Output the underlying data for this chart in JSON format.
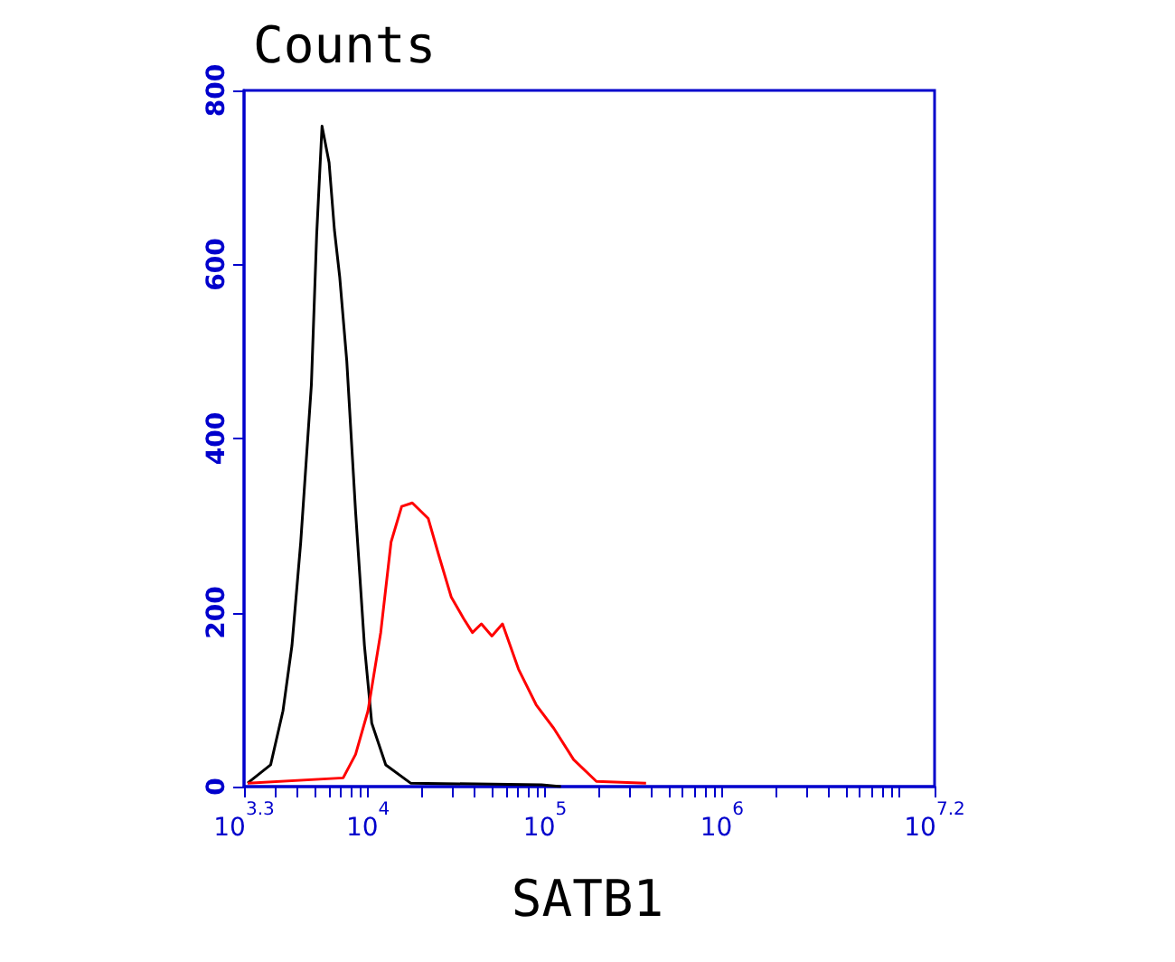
{
  "chart_data": {
    "type": "line",
    "ylabel": "Counts",
    "xlabel": "SATB1",
    "log": "x",
    "xlim": [
      1995,
      15850000
    ],
    "ylim": [
      0,
      800
    ],
    "yticks": [
      0,
      200,
      400,
      600,
      800
    ],
    "xticks": [
      {
        "value": 1995,
        "label": "10$^{3.3}$"
      },
      {
        "value": 3000,
        "label": null
      },
      {
        "value": 4000,
        "label": null
      },
      {
        "value": 5000,
        "label": null
      },
      {
        "value": 6000,
        "label": null
      },
      {
        "value": 7000,
        "label": null
      },
      {
        "value": 8000,
        "label": null
      },
      {
        "value": 9000,
        "label": null
      },
      {
        "value": 10000,
        "label": "10$^{4}$"
      },
      {
        "value": 20000,
        "label": null
      },
      {
        "value": 30000,
        "label": null
      },
      {
        "value": 40000,
        "label": null
      },
      {
        "value": 50000,
        "label": null
      },
      {
        "value": 60000,
        "label": null
      },
      {
        "value": 70000,
        "label": null
      },
      {
        "value": 80000,
        "label": null
      },
      {
        "value": 90000,
        "label": null
      },
      {
        "value": 100000,
        "label": "10$^{5}$"
      },
      {
        "value": 200000,
        "label": null
      },
      {
        "value": 300000,
        "label": null
      },
      {
        "value": 400000,
        "label": null
      },
      {
        "value": 500000,
        "label": null
      },
      {
        "value": 600000,
        "label": null
      },
      {
        "value": 700000,
        "label": null
      },
      {
        "value": 800000,
        "label": null
      },
      {
        "value": 900000,
        "label": null
      },
      {
        "value": 1000000,
        "label": "10$^{6}$"
      },
      {
        "value": 2000000,
        "label": null
      },
      {
        "value": 3000000,
        "label": null
      },
      {
        "value": 4000000,
        "label": null
      },
      {
        "value": 5000000,
        "label": null
      },
      {
        "value": 6000000,
        "label": null
      },
      {
        "value": 7000000,
        "label": null
      },
      {
        "value": 8000000,
        "label": null
      },
      {
        "value": 9000000,
        "label": null
      },
      {
        "value": 10000000,
        "label": null
      },
      {
        "value": 15850000,
        "label": "10$^{7.2}$"
      }
    ],
    "grid": false,
    "marker": "none",
    "line_style": "solid",
    "series": [
      {
        "color": "#000000",
        "x": [
          2090,
          2820,
          3310,
          3720,
          4170,
          4790,
          5130,
          5500,
          6030,
          6460,
          6920,
          7590,
          8510,
          9550,
          10500,
          12600,
          17400,
          95500,
          123000
        ],
        "values": [
          4,
          25,
          87,
          162,
          281,
          462,
          634,
          759,
          717,
          640,
          586,
          489,
          316,
          162,
          73,
          25,
          4,
          2,
          0
        ]
      },
      {
        "color": "#ff0000",
        "x": [
          2090,
          7240,
          8510,
          10000,
          11800,
          13500,
          15500,
          17800,
          21900,
          25100,
          29500,
          34700,
          38900,
          43700,
          50100,
          57500,
          70800,
          89100,
          112000,
          145000,
          195000,
          372000
        ],
        "values": [
          4,
          10,
          37,
          87,
          177,
          281,
          322,
          326,
          308,
          266,
          218,
          193,
          177,
          187,
          173,
          187,
          135,
          94,
          67,
          31,
          6,
          4
        ]
      }
    ]
  }
}
